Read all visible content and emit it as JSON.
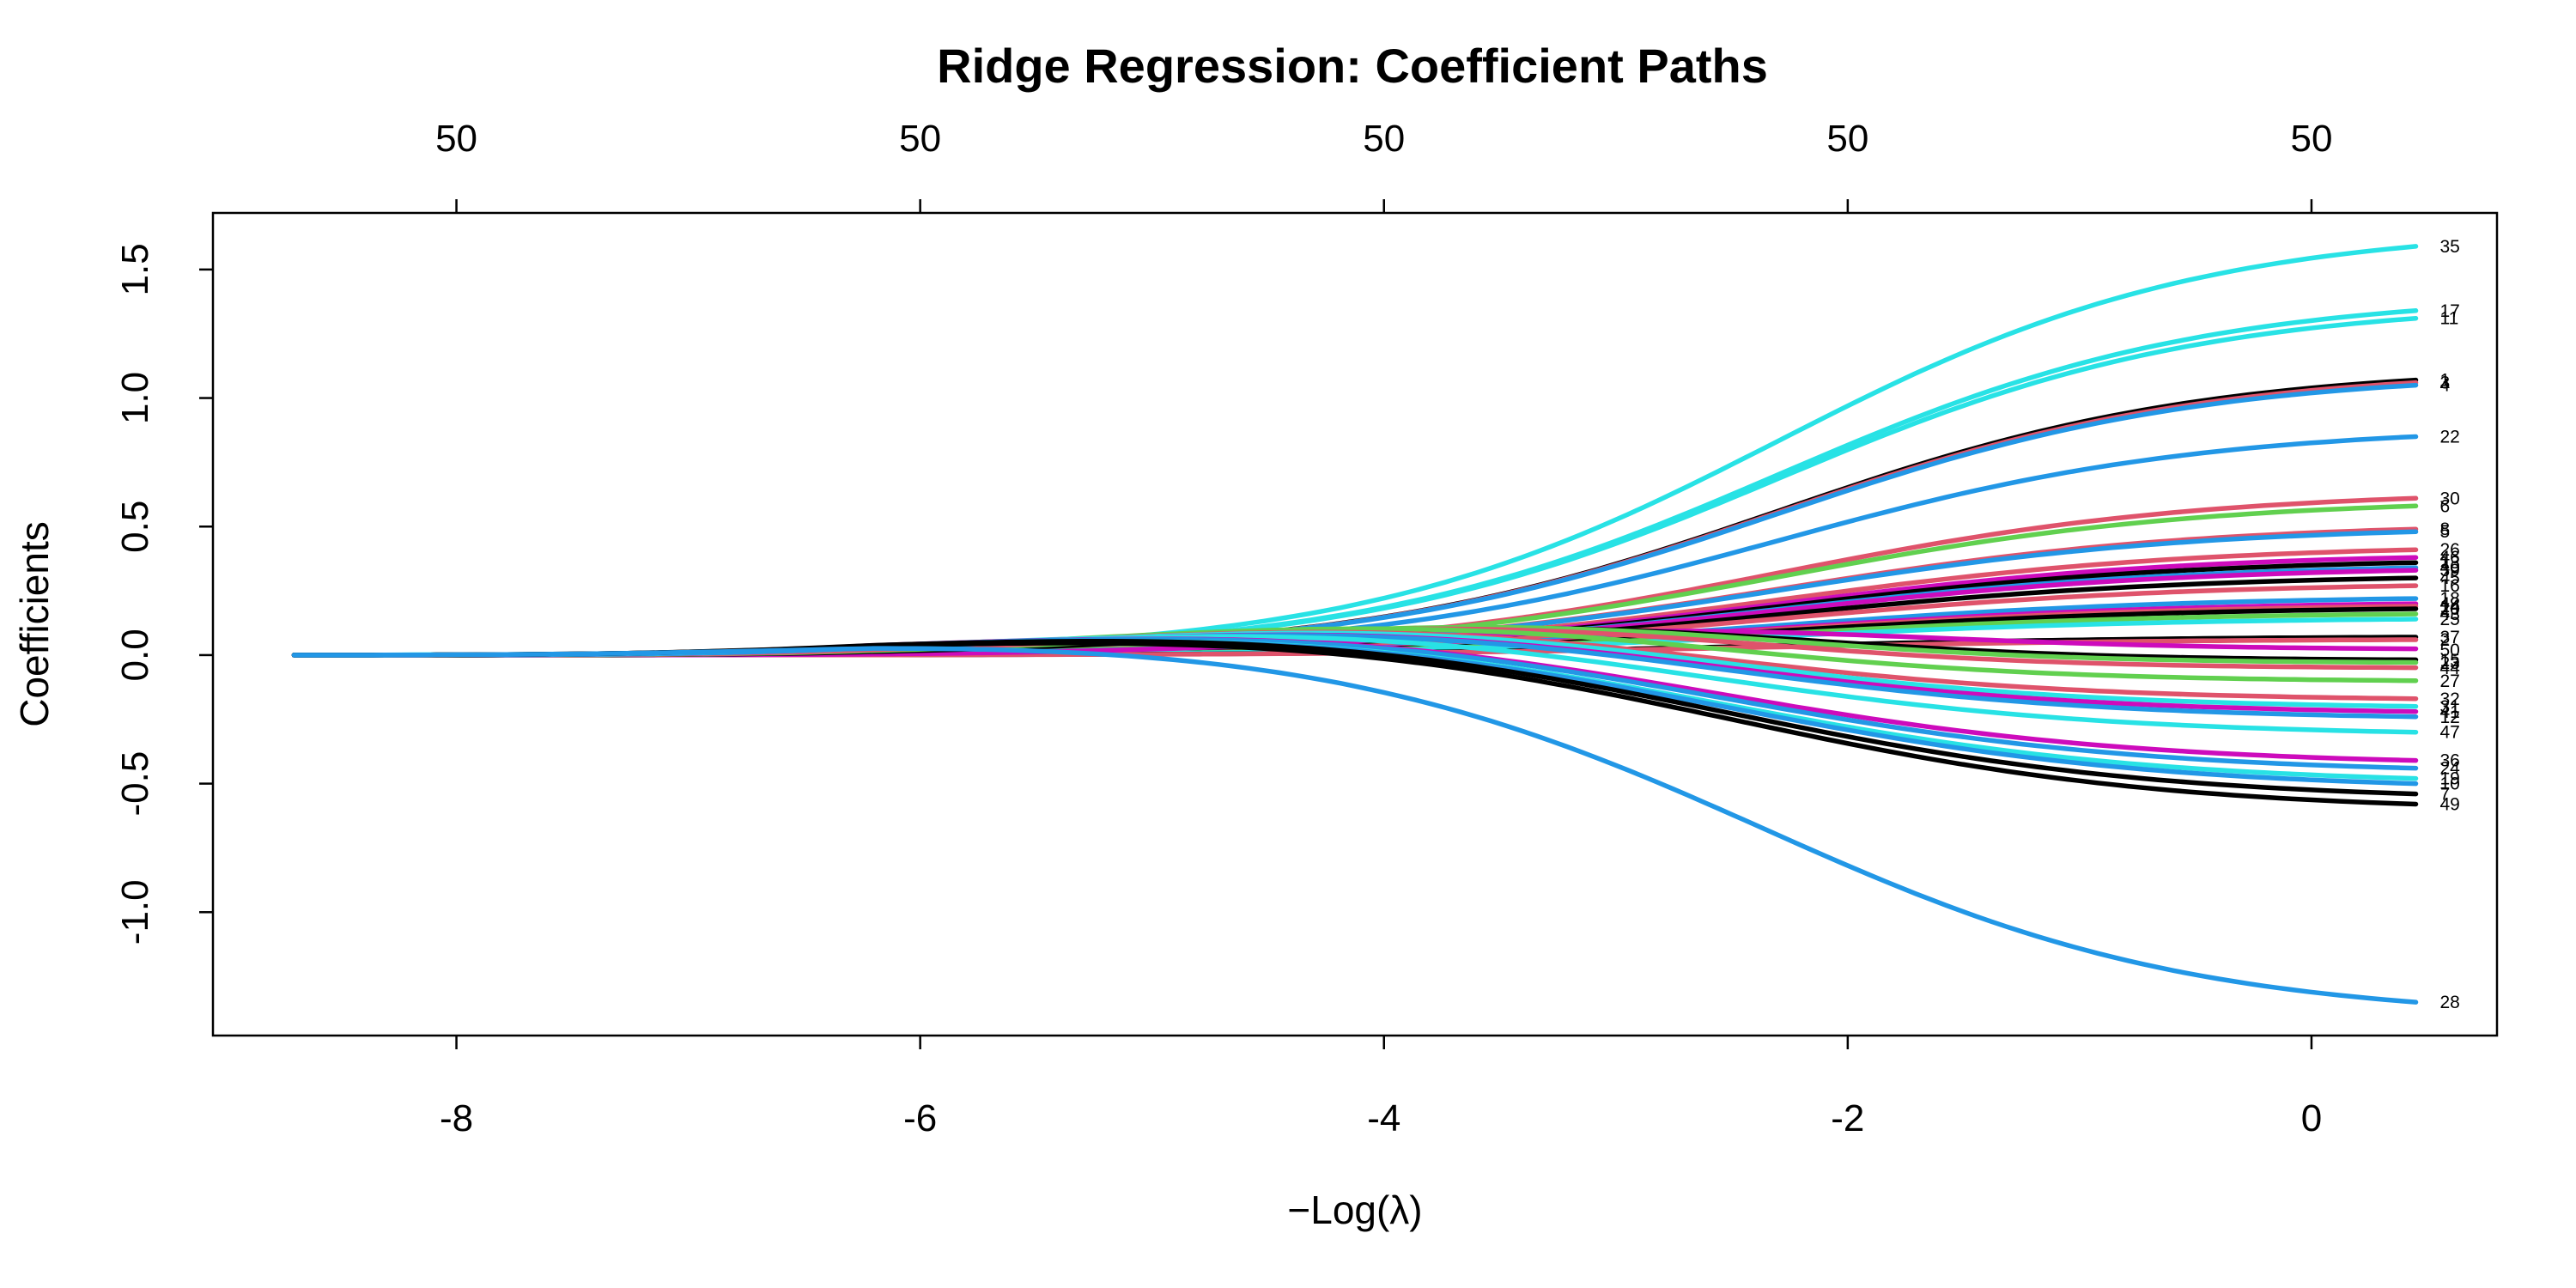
{
  "chart_data": {
    "type": "line",
    "title": "Ridge Regression: Coefficient Paths",
    "xlabel": "−Log(λ)",
    "ylabel": "Coefficients",
    "xlim": [
      -9.05,
      0.8
    ],
    "ylim": [
      -1.48,
      1.72
    ],
    "x_ticks": [
      -8,
      -6,
      -4,
      -2,
      0
    ],
    "x_tick_labels": [
      "-8",
      "-6",
      "-4",
      "-2",
      "0"
    ],
    "y_ticks": [
      -1.0,
      -0.5,
      0.0,
      0.5,
      1.0,
      1.5
    ],
    "y_tick_labels": [
      "-1.0",
      "-0.5",
      "0.0",
      "0.5",
      "1.0",
      "1.5"
    ],
    "top_ticks": [
      -8,
      -6,
      -4,
      -2,
      0
    ],
    "top_tick_labels": [
      "50",
      "50",
      "50",
      "50",
      "50"
    ],
    "grid": false,
    "x_start": -8.7,
    "x_end": 0.45,
    "series": [
      {
        "label": "35",
        "color": "#28E2E5",
        "end": 1.59,
        "peak_x": 9.0,
        "peak": 1.59
      },
      {
        "label": "17",
        "color": "#28E2E5",
        "end": 1.34,
        "peak_x": 9.0,
        "peak": 1.34
      },
      {
        "label": "11",
        "color": "#28E2E5",
        "end": 1.31,
        "peak_x": 9.0,
        "peak": 1.31
      },
      {
        "label": "1",
        "color": "#000000",
        "end": 1.07,
        "peak_x": 9.0,
        "peak": 1.07
      },
      {
        "label": "3",
        "color": "#DF536B",
        "end": 1.06,
        "peak_x": 9.0,
        "peak": 1.06
      },
      {
        "label": "4",
        "color": "#2297E6",
        "end": 1.05,
        "peak_x": 9.0,
        "peak": 1.05
      },
      {
        "label": "22",
        "color": "#2297E6",
        "end": 0.85,
        "peak_x": 9.0,
        "peak": 0.85
      },
      {
        "label": "30",
        "color": "#DF536B",
        "end": 0.61,
        "peak_x": 9.0,
        "peak": 0.61
      },
      {
        "label": "6",
        "color": "#61D04F",
        "end": 0.58,
        "peak_x": 9.0,
        "peak": 0.58
      },
      {
        "label": "8",
        "color": "#DF536B",
        "end": 0.49,
        "peak_x": 9.0,
        "peak": 0.49
      },
      {
        "label": "5",
        "color": "#2297E6",
        "end": 0.48,
        "peak_x": 9.0,
        "peak": 0.48
      },
      {
        "label": "26",
        "color": "#DF536B",
        "end": 0.41,
        "peak_x": 9.0,
        "peak": 0.41
      },
      {
        "label": "46",
        "color": "#CD0BBC",
        "end": 0.38,
        "peak_x": 9.0,
        "peak": 0.38
      },
      {
        "label": "13",
        "color": "#000000",
        "end": 0.36,
        "peak_x": 9.0,
        "peak": 0.36
      },
      {
        "label": "40",
        "color": "#2297E6",
        "end": 0.34,
        "peak_x": 9.0,
        "peak": 0.34
      },
      {
        "label": "39",
        "color": "#CD0BBC",
        "end": 0.33,
        "peak_x": 9.0,
        "peak": 0.33
      },
      {
        "label": "45",
        "color": "#000000",
        "end": 0.3,
        "peak_x": 9.0,
        "peak": 0.3
      },
      {
        "label": "16",
        "color": "#DF536B",
        "end": 0.27,
        "peak_x": 9.0,
        "peak": 0.27
      },
      {
        "label": "18",
        "color": "#2297E6",
        "end": 0.22,
        "peak_x": 9.0,
        "peak": 0.22
      },
      {
        "label": "42",
        "color": "#CD0BBC",
        "end": 0.2,
        "peak_x": 9.0,
        "peak": 0.2
      },
      {
        "label": "14",
        "color": "#DF536B",
        "end": 0.19,
        "peak_x": 9.0,
        "peak": 0.19
      },
      {
        "label": "20",
        "color": "#000000",
        "end": 0.18,
        "peak_x": 9.0,
        "peak": 0.18
      },
      {
        "label": "43",
        "color": "#61D04F",
        "end": 0.16,
        "peak_x": 9.0,
        "peak": 0.16
      },
      {
        "label": "25",
        "color": "#28E2E5",
        "end": 0.14,
        "peak_x": 9.0,
        "peak": 0.14
      },
      {
        "label": "37",
        "color": "#000000",
        "end": 0.07,
        "peak_x": 9.0,
        "peak": 0.07
      },
      {
        "label": "2",
        "color": "#DF536B",
        "end": 0.06,
        "peak_x": 9.0,
        "peak": 0.06
      },
      {
        "label": "50",
        "color": "#CD0BBC",
        "end": 0.02,
        "peak_x": -2.0,
        "peak": 0.15
      },
      {
        "label": "15",
        "color": "#000000",
        "end": -0.02,
        "peak_x": -2.8,
        "peak": 0.15
      },
      {
        "label": "23",
        "color": "#61D04F",
        "end": -0.03,
        "peak_x": -3.0,
        "peak": 0.15
      },
      {
        "label": "44",
        "color": "#DF536B",
        "end": -0.05,
        "peak_x": -3.2,
        "peak": 0.14
      },
      {
        "label": "27",
        "color": "#61D04F",
        "end": -0.1,
        "peak_x": -3.5,
        "peak": 0.14
      },
      {
        "label": "32",
        "color": "#DF536B",
        "end": -0.17,
        "peak_x": -3.6,
        "peak": 0.13
      },
      {
        "label": "31",
        "color": "#28E2E5",
        "end": -0.2,
        "peak_x": -3.6,
        "peak": 0.13
      },
      {
        "label": "41",
        "color": "#CD0BBC",
        "end": -0.22,
        "peak_x": -3.7,
        "peak": 0.12
      },
      {
        "label": "12",
        "color": "#2297E6",
        "end": -0.24,
        "peak_x": -3.7,
        "peak": 0.12
      },
      {
        "label": "47",
        "color": "#28E2E5",
        "end": -0.3,
        "peak_x": -4.0,
        "peak": 0.11
      },
      {
        "label": "36",
        "color": "#CD0BBC",
        "end": -0.41,
        "peak_x": -4.2,
        "peak": 0.1
      },
      {
        "label": "24",
        "color": "#2297E6",
        "end": -0.44,
        "peak_x": -4.2,
        "peak": 0.1
      },
      {
        "label": "19",
        "color": "#28E2E5",
        "end": -0.48,
        "peak_x": -4.3,
        "peak": 0.09
      },
      {
        "label": "10",
        "color": "#2297E6",
        "end": -0.5,
        "peak_x": -4.3,
        "peak": 0.09
      },
      {
        "label": "7",
        "color": "#000000",
        "end": -0.54,
        "peak_x": -4.4,
        "peak": 0.09
      },
      {
        "label": "49",
        "color": "#000000",
        "end": -0.58,
        "peak_x": -4.5,
        "peak": 0.08
      },
      {
        "label": "28",
        "color": "#2297E6",
        "end": -1.35,
        "peak_x": -5.0,
        "peak": 0.06
      }
    ]
  }
}
